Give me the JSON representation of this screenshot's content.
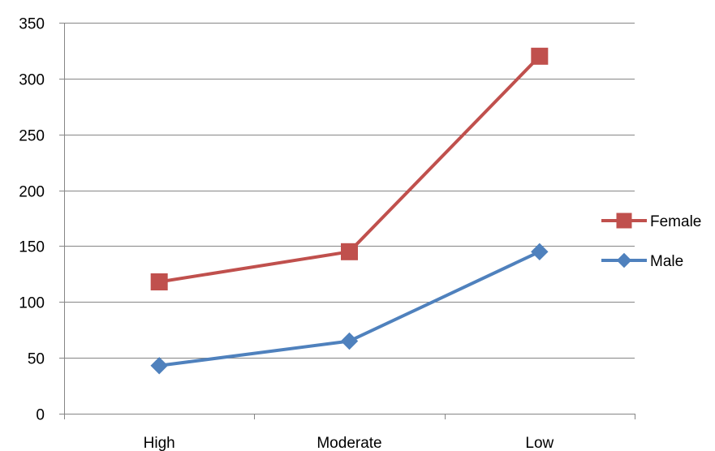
{
  "chart_data": {
    "type": "line",
    "categories": [
      "High",
      "Moderate",
      "Low"
    ],
    "series": [
      {
        "name": "Female",
        "values": [
          118,
          145,
          320
        ],
        "color": "#C0504D",
        "marker": "square"
      },
      {
        "name": "Male",
        "values": [
          43,
          65,
          145
        ],
        "color": "#4F81BD",
        "marker": "diamond"
      }
    ],
    "yticks": [
      "0",
      "50",
      "100",
      "150",
      "200",
      "250",
      "300",
      "350"
    ],
    "ylim": [
      0,
      350
    ],
    "ystep": 50,
    "grid": true,
    "legend": "right"
  }
}
